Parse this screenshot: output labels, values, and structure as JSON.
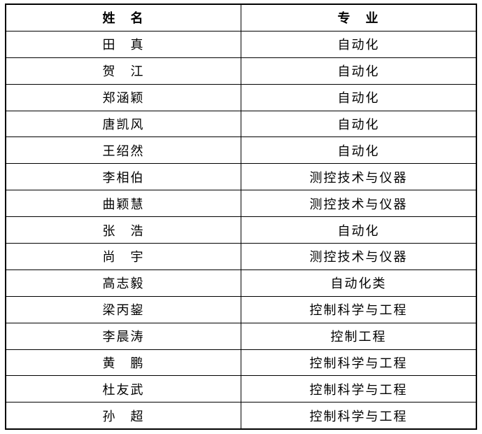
{
  "table": {
    "header": {
      "name_label": "姓　名",
      "major_label": "专　业"
    },
    "rows": [
      {
        "name": "田　真",
        "major": "自动化"
      },
      {
        "name": "贺　江",
        "major": "自动化"
      },
      {
        "name": "郑涵颖",
        "major": "自动化"
      },
      {
        "name": "唐凯风",
        "major": "自动化"
      },
      {
        "name": "王绍然",
        "major": "自动化"
      },
      {
        "name": "李相伯",
        "major": "测控技术与仪器"
      },
      {
        "name": "曲颖慧",
        "major": "测控技术与仪器"
      },
      {
        "name": "张　浩",
        "major": "自动化"
      },
      {
        "name": "尚　宇",
        "major": "测控技术与仪器"
      },
      {
        "name": "高志毅",
        "major": "自动化类"
      },
      {
        "name": "梁丙鋆",
        "major": "控制科学与工程"
      },
      {
        "name": "李晨涛",
        "major": "控制工程"
      },
      {
        "name": "黄　鹏",
        "major": "控制科学与工程"
      },
      {
        "name": "杜友武",
        "major": "控制科学与工程"
      },
      {
        "name": "孙　超",
        "major": "控制科学与工程"
      }
    ]
  },
  "colors": {
    "border": "#000000",
    "text": "#000000",
    "background": "#ffffff"
  }
}
